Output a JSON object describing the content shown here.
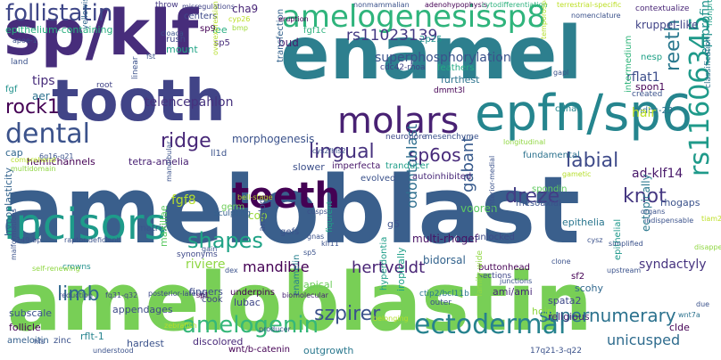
{
  "words": [
    {
      "text": "ameloblast",
      "color": "#3a5f8c"
    },
    {
      "text": "ameloblastin",
      "color": "#78cf56"
    },
    {
      "text": "enamel",
      "color": "#2d7f8e"
    },
    {
      "text": "tooth",
      "color": "#414487"
    },
    {
      "text": "sp/klf",
      "color": "#472d7b"
    },
    {
      "text": "amelogenesissp8",
      "color": "#2fb47c"
    },
    {
      "text": "epfn/sp6",
      "color": "#25858e"
    },
    {
      "text": "incisors",
      "color": "#1e9b8a"
    },
    {
      "text": "teeth",
      "color": "#440154"
    },
    {
      "text": "molars",
      "color": "#482173"
    },
    {
      "text": "dental",
      "color": "#3b528b"
    },
    {
      "text": "ectodermal",
      "color": "#26828e"
    },
    {
      "text": "follistatin",
      "color": "#3f4788"
    },
    {
      "text": "amelogenin",
      "color": "#35b779"
    },
    {
      "text": "rs11606345",
      "color": "#1f9a8a"
    },
    {
      "text": "rs11023139",
      "color": "#443983"
    },
    {
      "text": "rock1",
      "color": "#440154"
    },
    {
      "text": "lingual",
      "color": "#46327e"
    },
    {
      "text": "labial",
      "color": "#3e4a89"
    },
    {
      "text": "ridge",
      "color": "#482878"
    },
    {
      "text": "shapes",
      "color": "#20a386"
    },
    {
      "text": "dreze",
      "color": "#433e85"
    },
    {
      "text": "knot",
      "color": "#453781"
    },
    {
      "text": "limb",
      "color": "#31688e"
    },
    {
      "text": "szpirer",
      "color": "#3b528b"
    },
    {
      "text": "supernumerary",
      "color": "#2c728e"
    },
    {
      "text": "reeth",
      "color": "#2a788e"
    },
    {
      "text": "sp6os",
      "color": "#472a7a"
    },
    {
      "text": "gabant",
      "color": "#375a8c"
    },
    {
      "text": "superphosphorylation",
      "color": "#3b528b"
    },
    {
      "text": "epiprofin-knockout",
      "color": "#21918c"
    },
    {
      "text": "telencepahlon",
      "color": "#46327e"
    },
    {
      "text": "odontoblast",
      "color": "#2e6e8e"
    },
    {
      "text": "hertveldt",
      "color": "#482475"
    },
    {
      "text": "mandible",
      "color": "#440154"
    },
    {
      "text": "unicusped",
      "color": "#2f6c8e"
    },
    {
      "text": "syndactyly",
      "color": "#46337f"
    },
    {
      "text": "ad-klf14",
      "color": "#48186a"
    },
    {
      "text": "fgf8",
      "color": "#b5de2b"
    },
    {
      "text": "rflat1",
      "color": "#3d4e8a"
    },
    {
      "text": "tips",
      "color": "#472c7a"
    },
    {
      "text": "cha9",
      "color": "#482576"
    },
    {
      "text": "vooren",
      "color": "#5ec962"
    },
    {
      "text": "bidorsal",
      "color": "#33638d"
    },
    {
      "text": "multi-rhogef",
      "color": "#471164"
    },
    {
      "text": "riviere",
      "color": "#8fd744"
    },
    {
      "text": "epithelium-containing",
      "color": "#29af7f"
    },
    {
      "text": "morphogenesis",
      "color": "#3b528b"
    },
    {
      "text": "ectopically",
      "color": "#2a788e"
    },
    {
      "text": "mdpc-23",
      "color": "#2e6f8e"
    },
    {
      "text": "rhogaps",
      "color": "#3b528b"
    },
    {
      "text": "sp5",
      "color": "#472d7b"
    },
    {
      "text": "hair",
      "color": "#bddf26"
    },
    {
      "text": "cdna",
      "color": "#25858e"
    },
    {
      "text": "spon1",
      "color": "#440154"
    },
    {
      "text": "bud",
      "color": "#481b6d"
    },
    {
      "text": "mount",
      "color": "#20a486"
    },
    {
      "text": "rush",
      "color": "#3f4788"
    },
    {
      "text": "iee",
      "color": "#27ad81"
    },
    {
      "text": "fgf1c",
      "color": "#2db27d"
    },
    {
      "text": "2p25",
      "color": "#21918c"
    },
    {
      "text": "centers",
      "color": "#3e4a89"
    },
    {
      "text": "throw",
      "color": "#453882"
    },
    {
      "text": "nesp",
      "color": "#1fa187"
    },
    {
      "text": "kruppel-like",
      "color": "#414487"
    },
    {
      "text": "feathers",
      "color": "#24aa83"
    },
    {
      "text": "furthest",
      "color": "#2c738e"
    },
    {
      "text": "intermedium",
      "color": "#31b57b"
    },
    {
      "text": "transfection",
      "color": "#33638d"
    },
    {
      "text": "aer",
      "color": "#2c718e"
    },
    {
      "text": "fgf",
      "color": "#21918c"
    },
    {
      "text": "cap",
      "color": "#31678e"
    },
    {
      "text": "germ",
      "color": "#6ece58"
    },
    {
      "text": "cop",
      "color": "#9bd93c"
    },
    {
      "text": "amelod",
      "color": "#3b528b"
    },
    {
      "text": "ameloitin",
      "color": "#35608d"
    },
    {
      "text": "hemichannels",
      "color": "#440154"
    },
    {
      "text": "tetra-amelia",
      "color": "#482173"
    },
    {
      "text": "ll1d",
      "color": "#3b528b"
    },
    {
      "text": "sf2",
      "color": "#440154"
    },
    {
      "text": "scohy",
      "color": "#31688e"
    },
    {
      "text": "ami/ami",
      "color": "#482878"
    },
    {
      "text": "spata2",
      "color": "#3e4989"
    },
    {
      "text": "hoip",
      "color": "#90d743"
    },
    {
      "text": "religious",
      "color": "#482576"
    },
    {
      "text": "epithelial",
      "color": "#1f988b"
    },
    {
      "text": "buttonhead",
      "color": "#440154"
    },
    {
      "text": "sections",
      "color": "#3f4889"
    },
    {
      "text": "unlocked",
      "color": "#3e4a89"
    },
    {
      "text": "epithelia",
      "color": "#2a768e"
    },
    {
      "text": "g5",
      "color": "#3c4f8a"
    },
    {
      "text": "spondin",
      "color": "#60ca60"
    },
    {
      "text": "mesoaxial",
      "color": "#3b528b"
    },
    {
      "text": "hyperdontia",
      "color": "#1f9e89"
    },
    {
      "text": "iropically",
      "color": "#1fa088"
    },
    {
      "text": "enamelin",
      "color": "#27808e"
    },
    {
      "text": "fingers",
      "color": "#3e4c8a"
    },
    {
      "text": "lubac",
      "color": "#3f4788"
    },
    {
      "text": "cook",
      "color": "#414487"
    },
    {
      "text": "subscale",
      "color": "#3b528b"
    },
    {
      "text": "appendages",
      "color": "#3e4a89"
    },
    {
      "text": "follicle",
      "color": "#440154"
    },
    {
      "text": "hardest",
      "color": "#3b528b"
    },
    {
      "text": "discolored",
      "color": "#482979"
    },
    {
      "text": "outgrowth",
      "color": "#2a788e"
    },
    {
      "text": "wnt/b-catenin",
      "color": "#440154"
    },
    {
      "text": "zinc",
      "color": "#3b528b"
    },
    {
      "text": "rflt-1",
      "color": "#25838e"
    },
    {
      "text": "clde",
      "color": "#440154"
    },
    {
      "text": "hypoplasticity",
      "color": "#33638d"
    },
    {
      "text": "matrix",
      "color": "#39568c"
    },
    {
      "text": "maxillae",
      "color": "#5cc863"
    },
    {
      "text": "synonyms",
      "color": "#3e4989"
    },
    {
      "text": "gefs",
      "color": "#3b528b"
    },
    {
      "text": "apical",
      "color": "#6ccd5a"
    },
    {
      "text": "fiqurent",
      "color": "#20a386"
    },
    {
      "text": "sculpting",
      "color": "#35608d"
    },
    {
      "text": "slower",
      "color": "#3c4f8a"
    },
    {
      "text": "imperfecta",
      "color": "#48186a"
    },
    {
      "text": "tranducer",
      "color": "#1f9e89"
    },
    {
      "text": "evolved",
      "color": "#3b528b"
    },
    {
      "text": "autoinhibited",
      "color": "#482878"
    },
    {
      "text": "fundamental",
      "color": "#2c728e"
    },
    {
      "text": "cdc42-rhoa",
      "color": "#414487"
    },
    {
      "text": "neuropore",
      "color": "#3e4a89"
    },
    {
      "text": "mesenchyme",
      "color": "#3b528b"
    },
    {
      "text": "dmmt3l",
      "color": "#440154"
    },
    {
      "text": "contextualize",
      "color": "#482576"
    },
    {
      "text": "nonproliferating",
      "color": "#1fa088"
    },
    {
      "text": "classification",
      "color": "#2c728e"
    },
    {
      "text": "created",
      "color": "#3b528b"
    },
    {
      "text": "crowns",
      "color": "#21918c"
    },
    {
      "text": "linear",
      "color": "#3b528b"
    },
    {
      "text": "root",
      "color": "#414487"
    },
    {
      "text": "land",
      "color": "#3b528b"
    },
    {
      "text": "yellowish-brown",
      "color": "#31678e"
    },
    {
      "text": "sp9",
      "color": "#440154"
    },
    {
      "text": "misregulations",
      "color": "#414487"
    },
    {
      "text": "nonmammalian",
      "color": "#3b528b"
    },
    {
      "text": "adenohypophysis",
      "color": "#440154"
    },
    {
      "text": "cyp26",
      "color": "#bddf26"
    },
    {
      "text": "bmp",
      "color": "#a0da39"
    },
    {
      "text": "eruption",
      "color": "#440154"
    },
    {
      "text": "overexpression",
      "color": "#b5de2b"
    },
    {
      "text": "cytodifferentiation",
      "color": "#2db27d"
    },
    {
      "text": "terrestrial-specific",
      "color": "#bddf26"
    },
    {
      "text": "nomenclature",
      "color": "#3b528b"
    },
    {
      "text": "temporospatial",
      "color": "#b5de2b"
    },
    {
      "text": "gapl",
      "color": "#3b528b"
    },
    {
      "text": "posterior-lateral",
      "color": "#3e4989"
    },
    {
      "text": "sp1",
      "color": "#440154"
    },
    {
      "text": "reduction",
      "color": "#3e4989"
    },
    {
      "text": "fq31-q32",
      "color": "#414487"
    },
    {
      "text": "underpins",
      "color": "#440154"
    },
    {
      "text": "biomolecular",
      "color": "#482475"
    },
    {
      "text": "ctip2/bcl11b",
      "color": "#2a788e"
    },
    {
      "text": "outer",
      "color": "#3b528b"
    },
    {
      "text": "family-wide",
      "color": "#90d743"
    },
    {
      "text": "17q21-3-q22",
      "color": "#3b528b"
    },
    {
      "text": "producer",
      "color": "#3b528b"
    },
    {
      "text": "understood",
      "color": "#3b528b"
    },
    {
      "text": "belonging",
      "color": "#b5de2b"
    },
    {
      "text": "wnt7a",
      "color": "#2c728e"
    },
    {
      "text": "tiam2",
      "color": "#bddf26"
    },
    {
      "text": "organs",
      "color": "#3b528b"
    },
    {
      "text": "indispensable",
      "color": "#3b528b"
    },
    {
      "text": "longitudinal",
      "color": "#90d743"
    },
    {
      "text": "gametic",
      "color": "#b5de2b"
    },
    {
      "text": "anterior-medial",
      "color": "#3b528b"
    },
    {
      "text": "junctions",
      "color": "#3b528b"
    },
    {
      "text": "cysz",
      "color": "#3b528b"
    },
    {
      "text": "cys2/his2",
      "color": "#3b528b"
    },
    {
      "text": "bell-stage",
      "color": "#b5de2b"
    },
    {
      "text": "cusps",
      "color": "#3b528b"
    },
    {
      "text": "gnas",
      "color": "#3b528b"
    },
    {
      "text": "sp5",
      "color": "#3b528b"
    },
    {
      "text": "raptor-deficient",
      "color": "#3b528b"
    },
    {
      "text": "249-bp",
      "color": "#3b528b"
    },
    {
      "text": "6q16-q21",
      "color": "#3b528b"
    },
    {
      "text": "comprehend",
      "color": "#b5de2b"
    },
    {
      "text": "multidomain",
      "color": "#90d743"
    },
    {
      "text": "cloaca",
      "color": "#3b528b"
    },
    {
      "text": "apoe-1",
      "color": "#3b528b"
    },
    {
      "text": "fst",
      "color": "#3b528b"
    },
    {
      "text": "hfs",
      "color": "#3b528b"
    },
    {
      "text": "malformations",
      "color": "#3b528b"
    },
    {
      "text": "mandibular",
      "color": "#3b528b"
    },
    {
      "text": "self-renewing",
      "color": "#90d743"
    },
    {
      "text": "dex",
      "color": "#3b528b"
    },
    {
      "text": "gain",
      "color": "#3b528b"
    },
    {
      "text": "klf11",
      "color": "#3b528b"
    },
    {
      "text": "clone",
      "color": "#3b528b"
    },
    {
      "text": "simplified",
      "color": "#3b528b"
    },
    {
      "text": "upstream",
      "color": "#3b528b"
    },
    {
      "text": "disappear",
      "color": "#90d743"
    },
    {
      "text": "zebrafish",
      "color": "#b5de2b"
    },
    {
      "text": "due",
      "color": "#3b528b"
    },
    {
      "text": "sid",
      "color": "#3b528b"
    }
  ]
}
